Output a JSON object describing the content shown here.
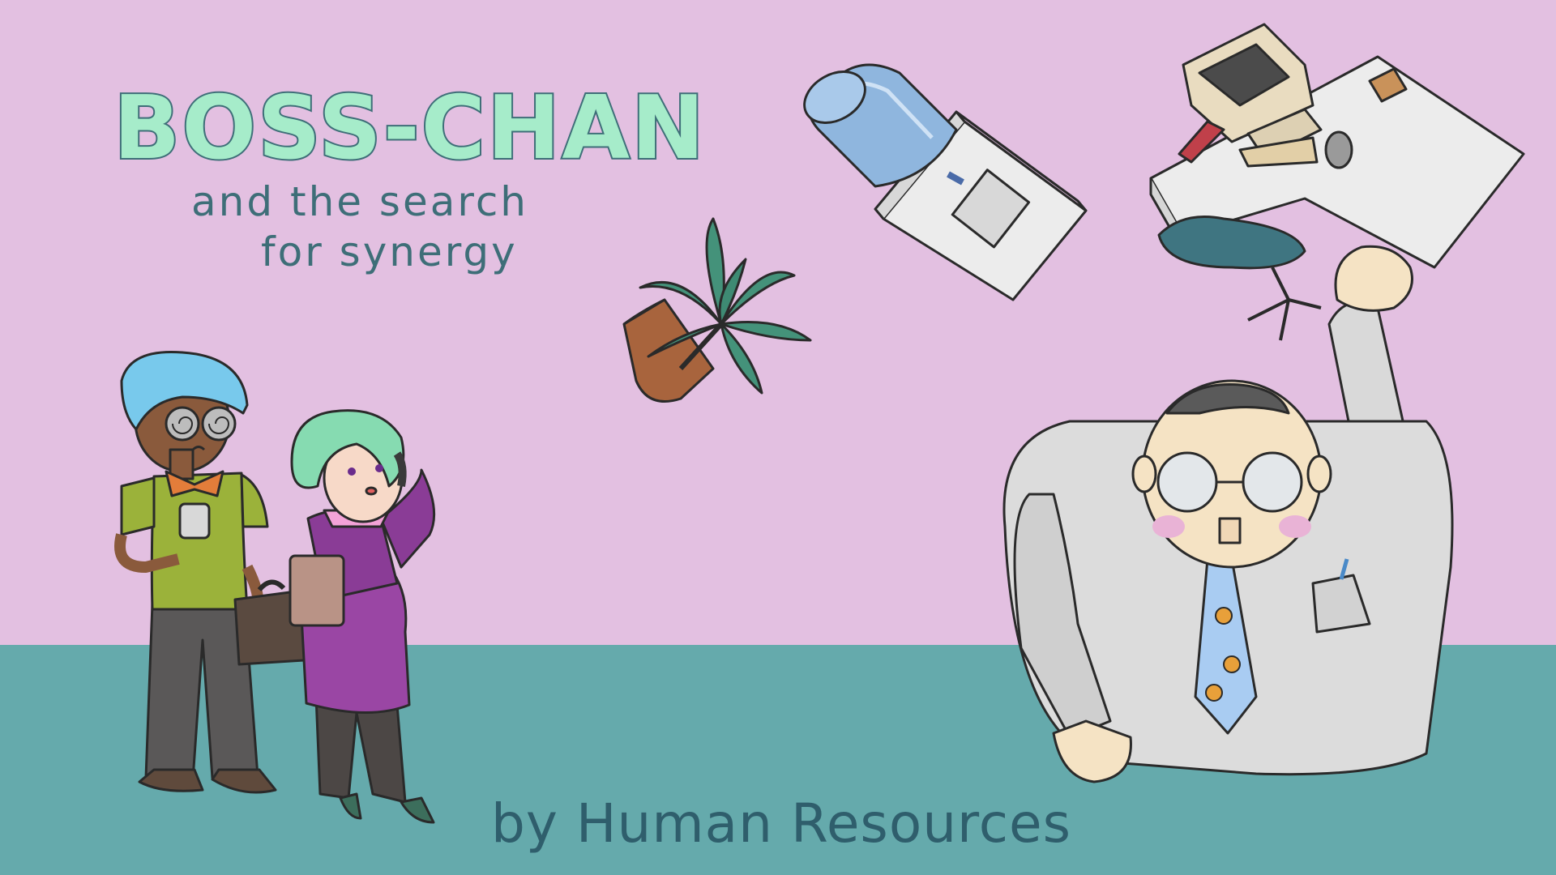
{
  "title": "BOSS-CHAN",
  "subtitle_line1": "and the search",
  "subtitle_line2": "for synergy",
  "byline": "by Human Resources",
  "colors": {
    "wall": "#e3c0e1",
    "floor": "#65aaac",
    "title_fill": "#a6ecca",
    "outline": "#3e6e78"
  }
}
